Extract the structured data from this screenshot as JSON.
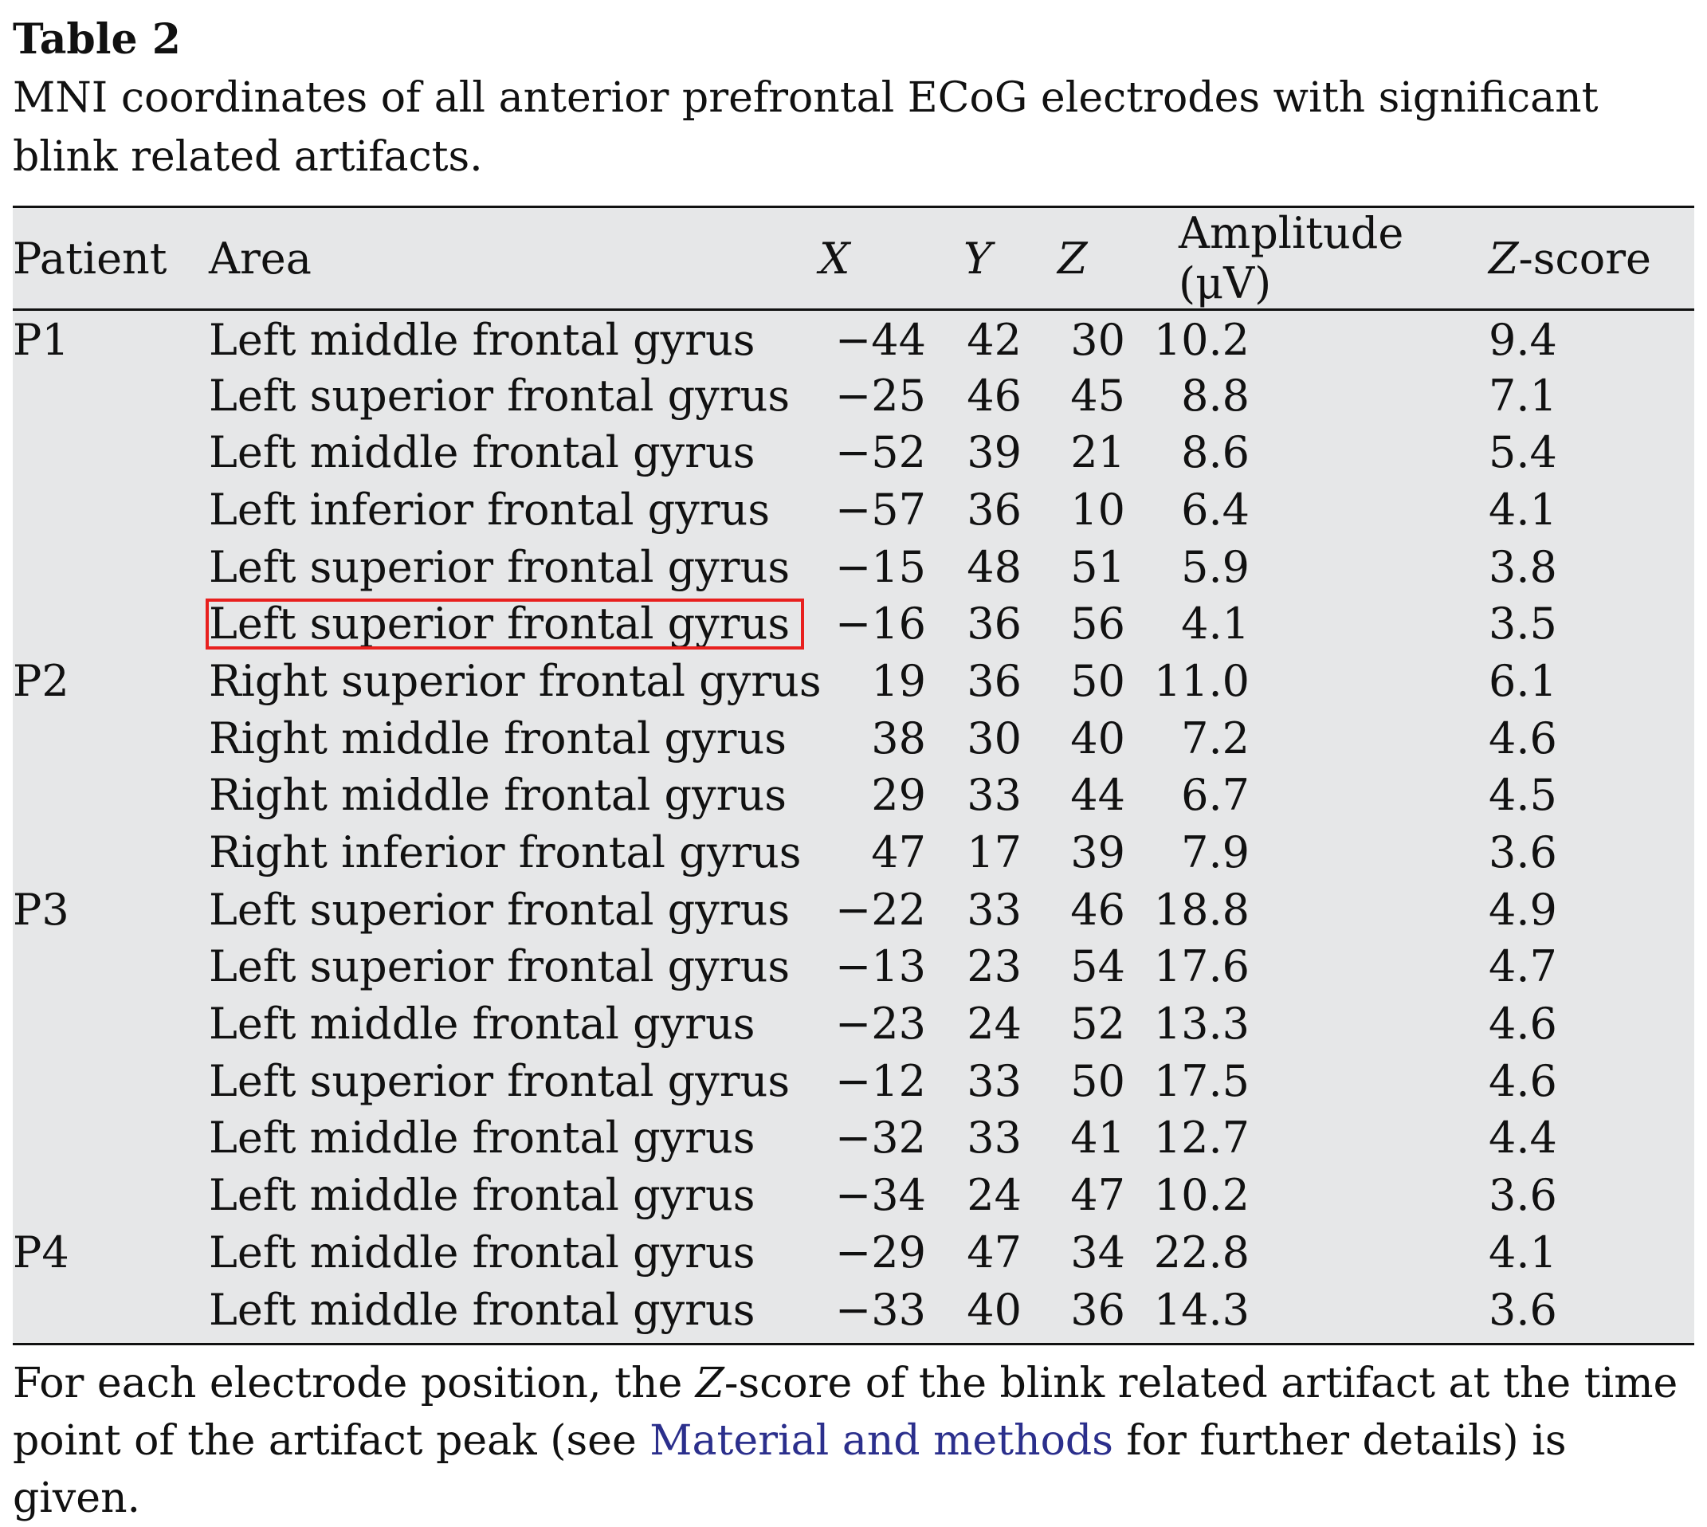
{
  "table_label": "Table 2",
  "caption": "MNI coordinates of all anterior prefrontal ECoG electrodes with significant blink related artifacts.",
  "columns": {
    "patient": "Patient",
    "area": "Area",
    "x": "X",
    "y": "Y",
    "z": "Z",
    "amplitude": "Amplitude (μV)",
    "zscore_italic": "Z",
    "zscore_rest": "-score"
  },
  "rows": [
    {
      "patient": "P1",
      "area": "Left middle frontal gyrus",
      "x": "−44",
      "y": "42",
      "z": "30",
      "amplitude": "10.2",
      "zscore": "9.4"
    },
    {
      "patient": "",
      "area": "Left superior frontal gyrus",
      "x": "−25",
      "y": "46",
      "z": "45",
      "amplitude": "8.8",
      "zscore": "7.1"
    },
    {
      "patient": "",
      "area": "Left middle frontal gyrus",
      "x": "−52",
      "y": "39",
      "z": "21",
      "amplitude": "8.6",
      "zscore": "5.4"
    },
    {
      "patient": "",
      "area": "Left inferior frontal gyrus",
      "x": "−57",
      "y": "36",
      "z": "10",
      "amplitude": "6.4",
      "zscore": "4.1"
    },
    {
      "patient": "",
      "area": "Left superior frontal gyrus",
      "x": "−15",
      "y": "48",
      "z": "51",
      "amplitude": "5.9",
      "zscore": "3.8"
    },
    {
      "patient": "",
      "area": "Left superior frontal gyrus",
      "x": "−16",
      "y": "36",
      "z": "56",
      "amplitude": "4.1",
      "zscore": "3.5",
      "highlighted": true
    },
    {
      "patient": "P2",
      "area": "Right superior frontal gyrus",
      "x": "19",
      "y": "36",
      "z": "50",
      "amplitude": "11.0",
      "zscore": "6.1"
    },
    {
      "patient": "",
      "area": "Right middle frontal gyrus",
      "x": "38",
      "y": "30",
      "z": "40",
      "amplitude": "7.2",
      "zscore": "4.6"
    },
    {
      "patient": "",
      "area": "Right middle frontal gyrus",
      "x": "29",
      "y": "33",
      "z": "44",
      "amplitude": "6.7",
      "zscore": "4.5"
    },
    {
      "patient": "",
      "area": "Right inferior frontal gyrus",
      "x": "47",
      "y": "17",
      "z": "39",
      "amplitude": "7.9",
      "zscore": "3.6"
    },
    {
      "patient": "P3",
      "area": "Left superior frontal gyrus",
      "x": "−22",
      "y": "33",
      "z": "46",
      "amplitude": "18.8",
      "zscore": "4.9"
    },
    {
      "patient": "",
      "area": "Left superior frontal gyrus",
      "x": "−13",
      "y": "23",
      "z": "54",
      "amplitude": "17.6",
      "zscore": "4.7"
    },
    {
      "patient": "",
      "area": "Left middle frontal gyrus",
      "x": "−23",
      "y": "24",
      "z": "52",
      "amplitude": "13.3",
      "zscore": "4.6"
    },
    {
      "patient": "",
      "area": "Left superior frontal gyrus",
      "x": "−12",
      "y": "33",
      "z": "50",
      "amplitude": "17.5",
      "zscore": "4.6"
    },
    {
      "patient": "",
      "area": "Left middle frontal gyrus",
      "x": "−32",
      "y": "33",
      "z": "41",
      "amplitude": "12.7",
      "zscore": "4.4"
    },
    {
      "patient": "",
      "area": "Left middle frontal gyrus",
      "x": "−34",
      "y": "24",
      "z": "47",
      "amplitude": "10.2",
      "zscore": "3.6"
    },
    {
      "patient": "P4",
      "area": "Left middle frontal gyrus",
      "x": "−29",
      "y": "47",
      "z": "34",
      "amplitude": "22.8",
      "zscore": "4.1"
    },
    {
      "patient": "",
      "area": "Left middle frontal gyrus",
      "x": "−33",
      "y": "40",
      "z": "36",
      "amplitude": "14.3",
      "zscore": "3.6"
    }
  ],
  "footnote": {
    "part1": "For each electrode position, the ",
    "z_italic": "Z",
    "part2": "-score of the blink related artifact at the time point of the artifact peak (see ",
    "link_text": "Material and methods",
    "part3": " for further details) is given."
  },
  "colors": {
    "table_background": "#e6e7e8",
    "highlight_box": "#e8201e",
    "link": "#2b2f8c"
  }
}
